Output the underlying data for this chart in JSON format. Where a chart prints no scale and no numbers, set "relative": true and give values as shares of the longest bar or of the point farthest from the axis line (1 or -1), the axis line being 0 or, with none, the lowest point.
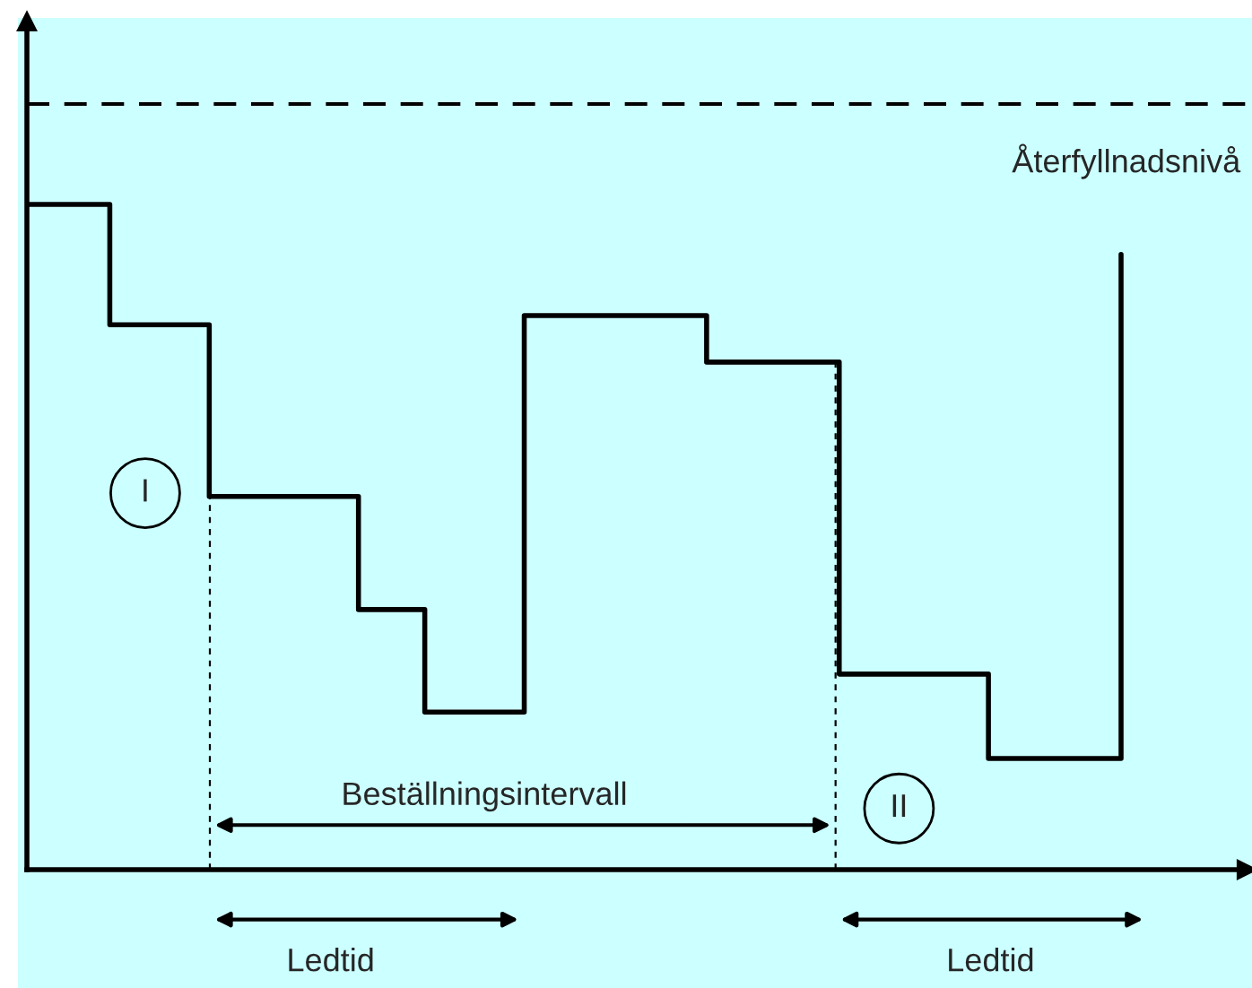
{
  "chart_data": {
    "type": "step",
    "relative": true,
    "line_style": "solid",
    "marker": "none",
    "categories": [
      null,
      null,
      null,
      null,
      null,
      null,
      null,
      null,
      null,
      null,
      null,
      null,
      null,
      null,
      null,
      null,
      null,
      null,
      null,
      null,
      null,
      null,
      null,
      null,
      null,
      null,
      null,
      null,
      null,
      null,
      null,
      null,
      null,
      null,
      null,
      null,
      null,
      null,
      null,
      null,
      null,
      null,
      null,
      null,
      null,
      null,
      null,
      null,
      null,
      null,
      null,
      null,
      null,
      null,
      null,
      null,
      null,
      null,
      null,
      null,
      null,
      null,
      null,
      null,
      null,
      null,
      null
    ],
    "series": [
      {
        "color": "#000000",
        "values": [
          1,
          1,
          1,
          1,
          1,
          0.819,
          0.819,
          0.819,
          0.819,
          0.819,
          0.819,
          0.561,
          0.561,
          0.561,
          0.561,
          0.561,
          0.561,
          0.561,
          0.561,
          0.561,
          0.391,
          0.391,
          0.391,
          0.391,
          0.237,
          0.237,
          0.237,
          0.237,
          0.237,
          0.237,
          0.833,
          0.833,
          0.833,
          0.833,
          0.833,
          0.833,
          0.833,
          0.833,
          0.833,
          0.833,
          0.833,
          0.763,
          0.763,
          0.763,
          0.763,
          0.763,
          0.763,
          0.763,
          0.763,
          0.294,
          0.294,
          0.294,
          0.294,
          0.294,
          0.294,
          0.294,
          0.294,
          0.294,
          0.167,
          0.167,
          0.167,
          0.167,
          0.167,
          0.167,
          0.167,
          0.167,
          0.925
        ]
      }
    ],
    "ref_lines": [
      {
        "axis": "y",
        "value": 1.151,
        "label": "Återfyllnadsnivå",
        "line_style": "dashed",
        "color": "#000000"
      }
    ],
    "annotations": [
      "Beställningsintervall",
      "Ledtid",
      "Ledtid",
      "I",
      "II"
    ]
  }
}
